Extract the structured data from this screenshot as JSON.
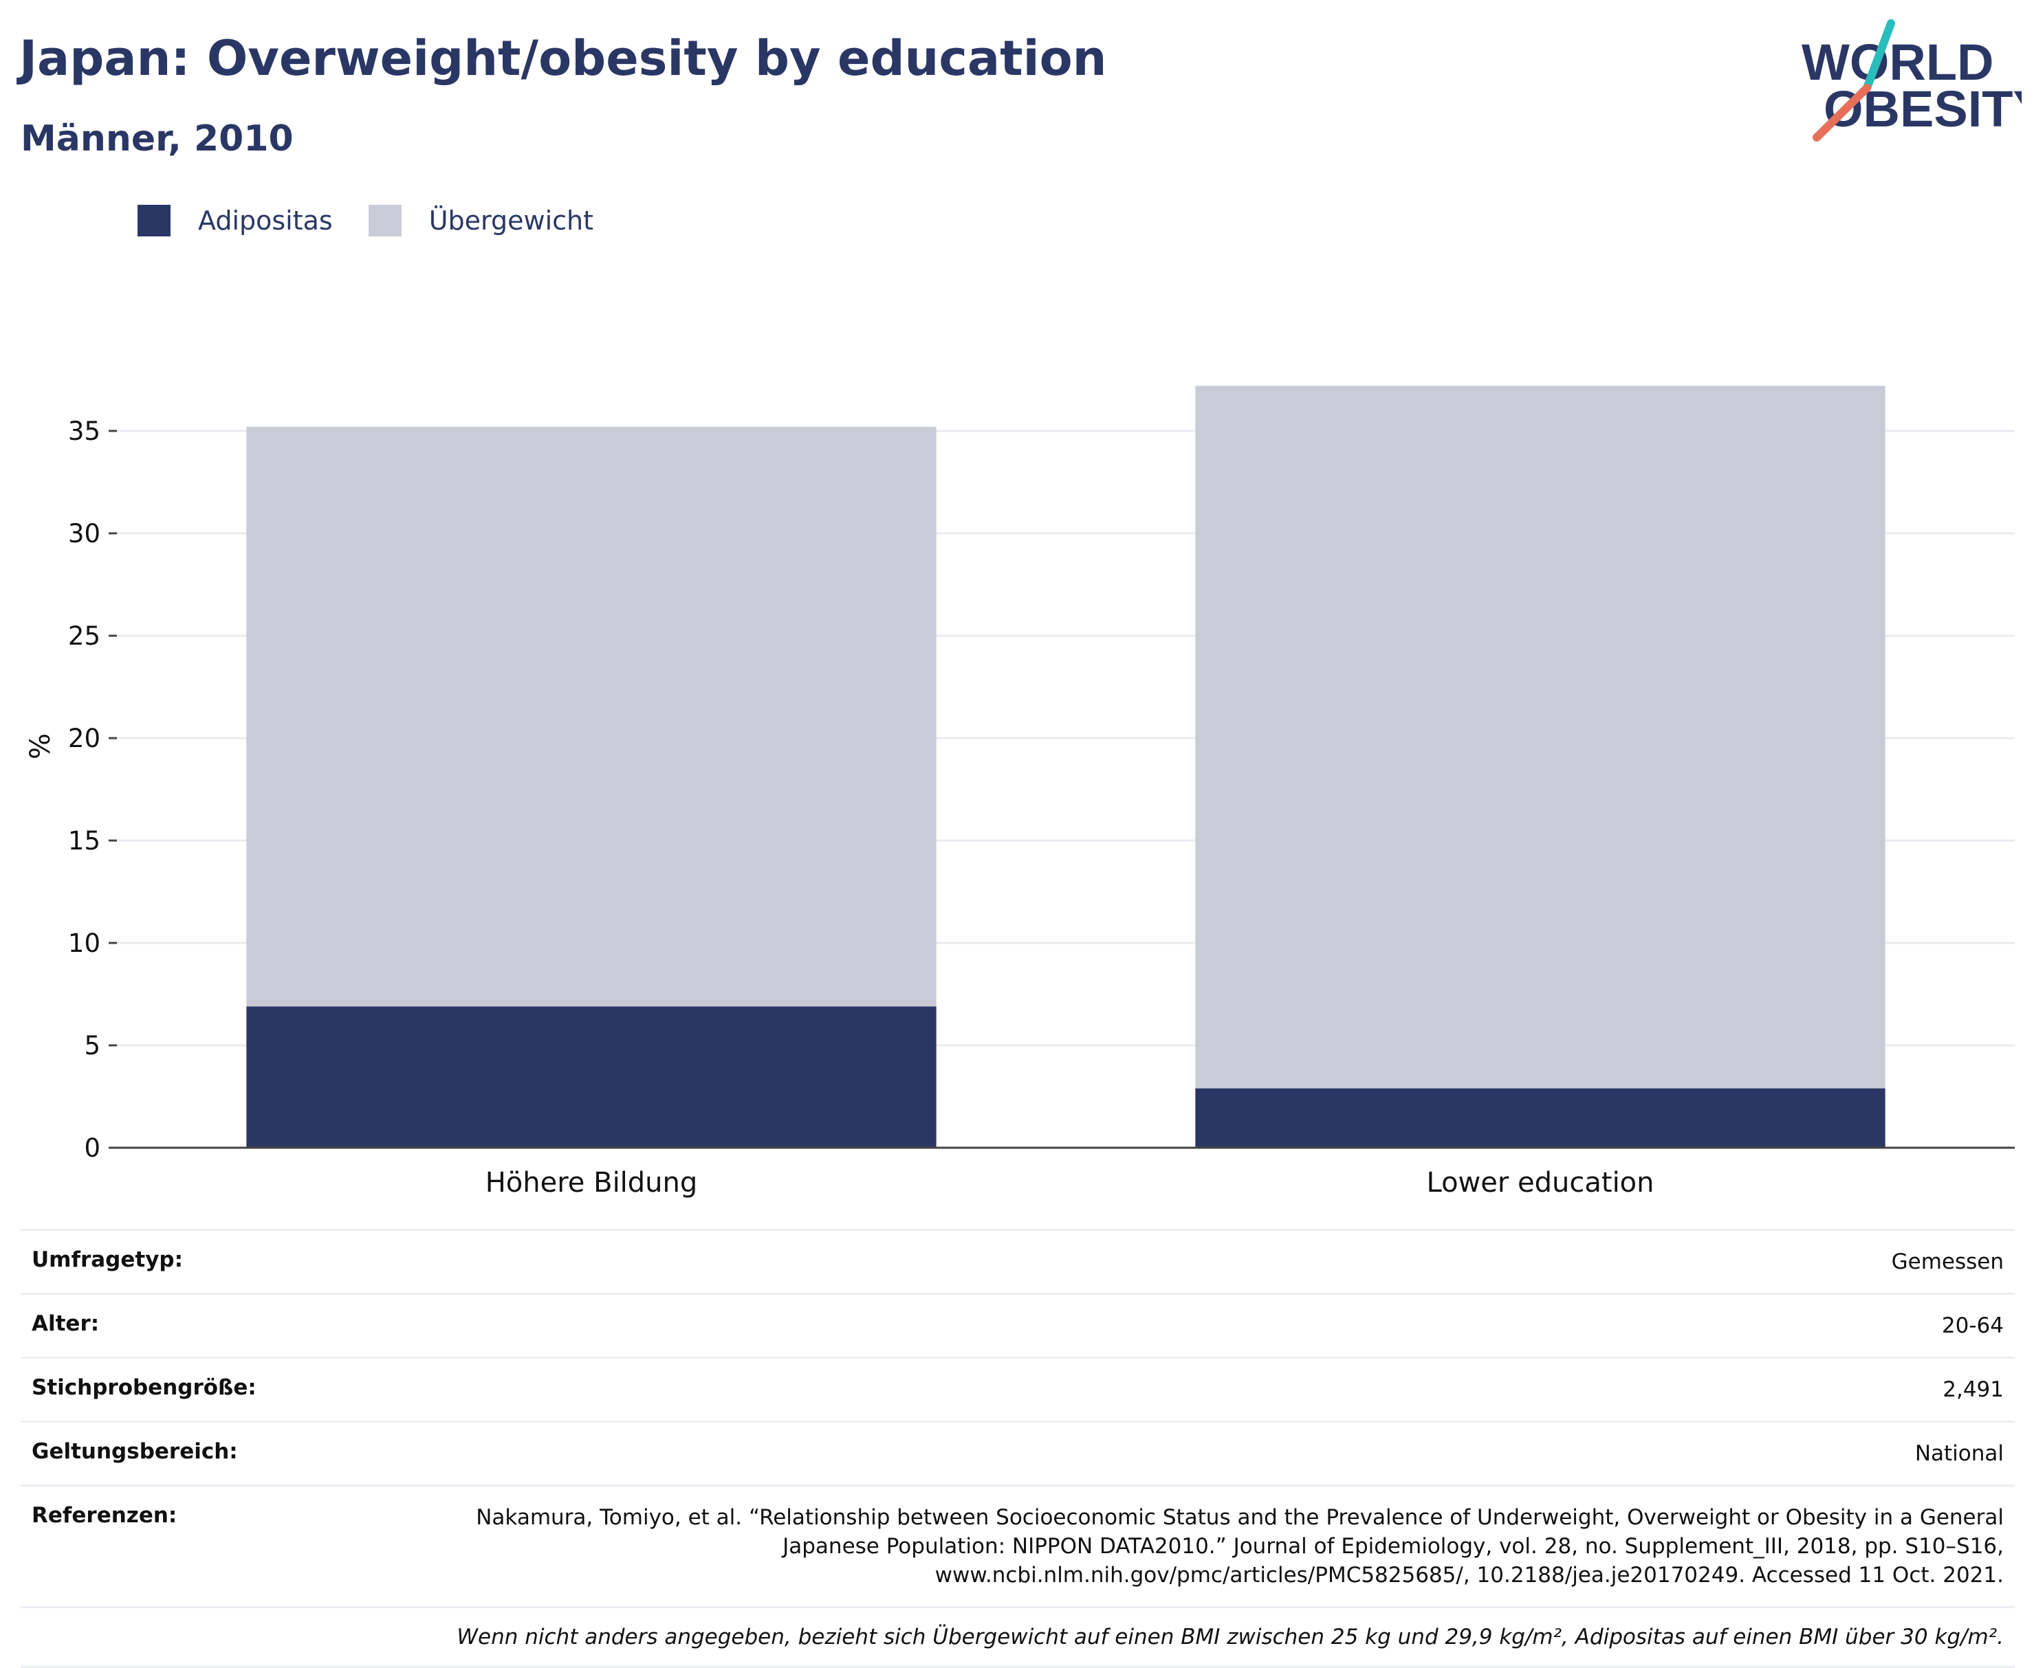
{
  "header": {
    "title": "Japan: Overweight/obesity by education",
    "subtitle": "Männer, 2010"
  },
  "logo": {
    "line1": "WORLD",
    "line2": "OBESITY"
  },
  "colors": {
    "adipositas": "#2a3765",
    "uebergewicht": "#c9ccd7",
    "text": "#2a3765",
    "grid": "#e9ebf0",
    "logo_teal": "#2bbcbc",
    "logo_coral": "#e76f5a"
  },
  "legend": [
    {
      "label": "Adipositas",
      "color": "#2a3765"
    },
    {
      "label": "Übergewicht",
      "color": "#c9ccd7"
    }
  ],
  "chart_data": {
    "type": "bar",
    "stacked": true,
    "categories": [
      "Höhere Bildung",
      "Lower education"
    ],
    "series": [
      {
        "name": "Adipositas",
        "values": [
          6.9,
          2.9
        ]
      },
      {
        "name": "Übergewicht",
        "values": [
          28.3,
          34.3
        ]
      }
    ],
    "ylabel": "%",
    "ylim": [
      0,
      38
    ],
    "yticks": [
      0,
      5,
      10,
      15,
      20,
      25,
      30,
      35
    ],
    "grid": true,
    "legend_position": "top-left"
  },
  "meta": [
    {
      "key": "Umfragetyp:",
      "value": "Gemessen"
    },
    {
      "key": "Alter:",
      "value": "20-64"
    },
    {
      "key": "Stichprobengröße:",
      "value": "2,491"
    },
    {
      "key": "Geltungsbereich:",
      "value": "National"
    },
    {
      "key": "Referenzen:",
      "value": "Nakamura, Tomiyo, et al. “Relationship between Socioeconomic Status and the Prevalence of Underweight, Overweight or Obesity in a General Japanese Population: NIPPON DATA2010.” Journal of Epidemiology, vol. 28, no. Supplement_III, 2018, pp. S10–S16, www.ncbi.nlm.nih.gov/pmc/articles/PMC5825685/, 10.2188/jea.je20170249. Accessed 11 Oct. 2021."
    }
  ],
  "note": "Wenn nicht anders angegeben, bezieht sich Übergewicht auf einen BMI zwischen 25 kg und 29,9 kg/m², Adipositas auf einen BMI über 30 kg/m²."
}
